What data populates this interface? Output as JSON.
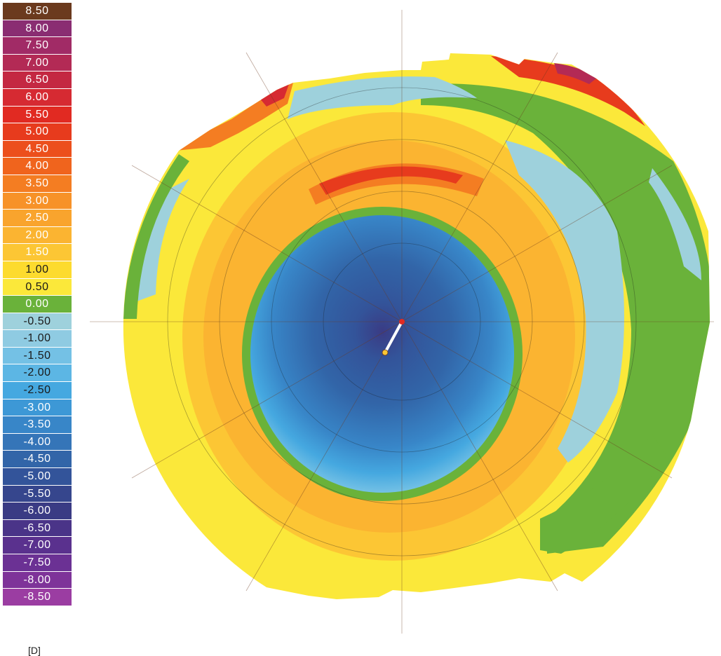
{
  "chart_data": {
    "type": "heatmap",
    "legend": {
      "unit": "[D]",
      "entries": [
        {
          "label": "8.50",
          "value": 8.5,
          "color": "#6b3a1e"
        },
        {
          "label": "8.00",
          "value": 8.0,
          "color": "#8a2d72"
        },
        {
          "label": "7.50",
          "value": 7.5,
          "color": "#a12b66"
        },
        {
          "label": "7.00",
          "value": 7.0,
          "color": "#b32a55"
        },
        {
          "label": "6.50",
          "value": 6.5,
          "color": "#c42842"
        },
        {
          "label": "6.00",
          "value": 6.0,
          "color": "#d62a32"
        },
        {
          "label": "5.50",
          "value": 5.5,
          "color": "#e12a22"
        },
        {
          "label": "5.00",
          "value": 5.0,
          "color": "#e73b1d"
        },
        {
          "label": "4.50",
          "value": 4.5,
          "color": "#ec4f1c"
        },
        {
          "label": "4.00",
          "value": 4.0,
          "color": "#f0641d"
        },
        {
          "label": "3.50",
          "value": 3.5,
          "color": "#f47d22"
        },
        {
          "label": "3.00",
          "value": 3.0,
          "color": "#f79228"
        },
        {
          "label": "2.50",
          "value": 2.5,
          "color": "#f9a42d"
        },
        {
          "label": "2.00",
          "value": 2.0,
          "color": "#fbb431"
        },
        {
          "label": "1.50",
          "value": 1.5,
          "color": "#fcc634"
        },
        {
          "label": "1.00",
          "value": 1.0,
          "color": "#fddb2e"
        },
        {
          "label": "0.50",
          "value": 0.5,
          "color": "#fbe83a"
        },
        {
          "label": "0.00",
          "value": 0.0,
          "color": "#6ab23a"
        },
        {
          "label": "-0.50",
          "value": -0.5,
          "color": "#9ed1dc"
        },
        {
          "label": "-1.00",
          "value": -1.0,
          "color": "#8fcbe2"
        },
        {
          "label": "-1.50",
          "value": -1.5,
          "color": "#74c1e5"
        },
        {
          "label": "-2.00",
          "value": -2.0,
          "color": "#5cb6e4"
        },
        {
          "label": "-2.50",
          "value": -2.5,
          "color": "#45a8e0"
        },
        {
          "label": "-3.00",
          "value": -3.0,
          "color": "#3d98d6"
        },
        {
          "label": "-3.50",
          "value": -3.5,
          "color": "#3886c8"
        },
        {
          "label": "-4.00",
          "value": -4.0,
          "color": "#3575b8"
        },
        {
          "label": "-4.50",
          "value": -4.5,
          "color": "#3265a8"
        },
        {
          "label": "-5.00",
          "value": -5.0,
          "color": "#33549a"
        },
        {
          "label": "-5.50",
          "value": -5.5,
          "color": "#36468d"
        },
        {
          "label": "-6.00",
          "value": -6.0,
          "color": "#3a3b84"
        },
        {
          "label": "-6.50",
          "value": -6.5,
          "color": "#4a3488"
        },
        {
          "label": "-7.00",
          "value": -7.0,
          "color": "#5a318e"
        },
        {
          "label": "-7.50",
          "value": -7.5,
          "color": "#6b3194"
        },
        {
          "label": "-8.00",
          "value": -8.0,
          "color": "#7e3399"
        },
        {
          "label": "-8.50",
          "value": -8.5,
          "color": "#9b3da2"
        }
      ]
    },
    "map_zones": [
      {
        "zone": "central-optical-zone",
        "value": -4.5
      },
      {
        "zone": "central-zone-edge",
        "value": -2.0
      },
      {
        "zone": "transition-ring",
        "value": 0.0
      },
      {
        "zone": "treatment-ring",
        "value": 1.0
      },
      {
        "zone": "steep-arc-top",
        "value": 4.0
      },
      {
        "zone": "peripheral-zone",
        "value": 0.5
      },
      {
        "zone": "peripheral-flat-zones",
        "value": -0.5
      },
      {
        "zone": "upper-edge-arc",
        "value": 6.0
      }
    ],
    "grid": true
  }
}
